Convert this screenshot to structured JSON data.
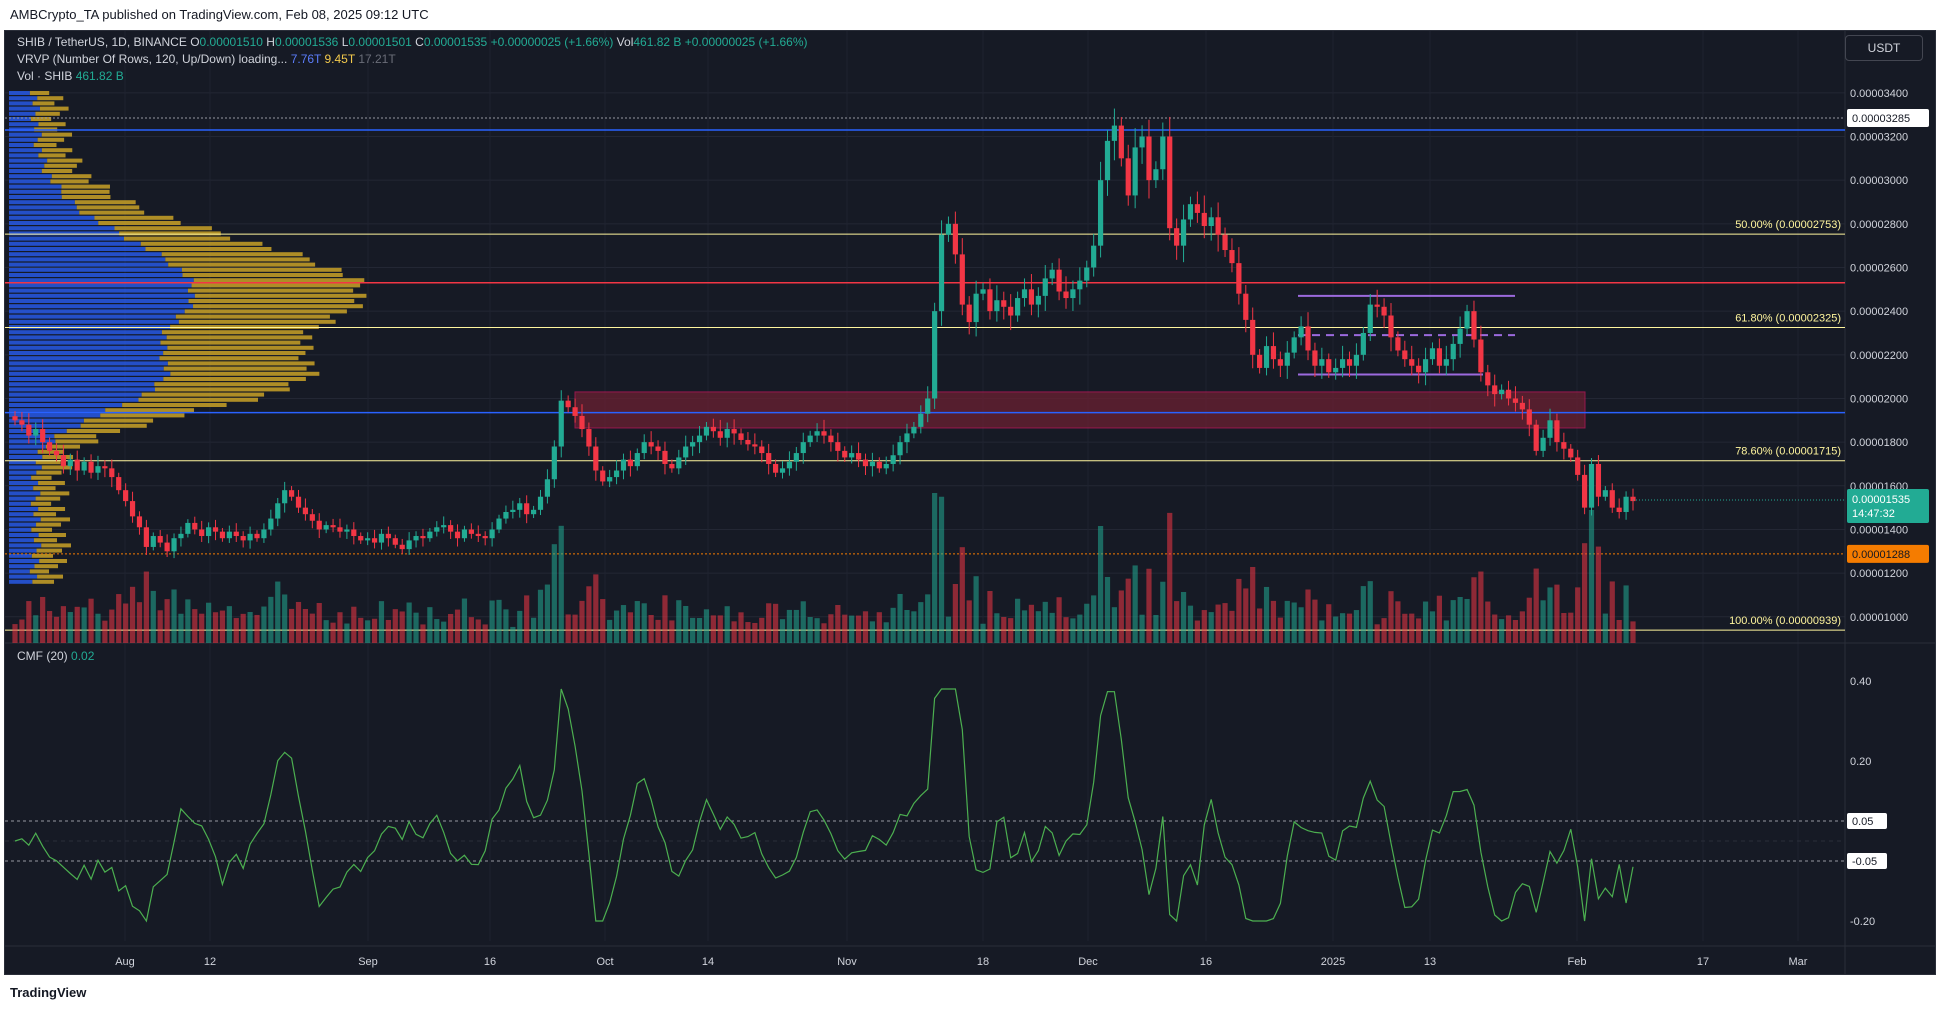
{
  "header": {
    "published": "AMBCrypto_TA published on TradingView.com, Feb 08, 2025 09:12 UTC"
  },
  "legend": {
    "symbol": "SHIB / TetherUS, 1D, BINANCE",
    "o_label": "O",
    "o": "0.00001510",
    "h_label": "H",
    "h": "0.00001536",
    "l_label": "L",
    "l": "0.00001501",
    "c_label": "C",
    "c": "0.00001535",
    "change": "+0.00000025 (+1.66%)",
    "vol_label": "Vol",
    "vol": "461.82 B",
    "vol_change": "+0.00000025 (+1.66%)",
    "vrvp": "VRVP (Number Of Rows, 120, Up/Down) loading...",
    "vrvp_up": "7.76T",
    "vrvp_down": "9.45T",
    "vrvp_total": "17.21T",
    "vol_series": "Vol · SHIB",
    "vol_series_value": "461.82 B",
    "cmf": "CMF (20)",
    "cmf_value": "0.02"
  },
  "currency_button": "USDT",
  "footer": {
    "logo": "TradingView"
  },
  "colors": {
    "up": "#22ab94",
    "down": "#f23645",
    "fib": "#fff59d",
    "blue": "#2962ff",
    "red_line": "#f23645",
    "cmf": "#4caf50",
    "zone": "#6b2032"
  },
  "chart_data": {
    "type": "candlestick",
    "symbol": "SHIB/USDT",
    "timeframe": "1D",
    "ylim": [
      8.8e-06,
      3.5e-05
    ],
    "yticks": [
      "0.00003400",
      "0.00003200",
      "0.00003000",
      "0.00002800",
      "0.00002600",
      "0.00002400",
      "0.00002200",
      "0.00002000",
      "0.00001800",
      "0.00001600",
      "0.00001400",
      "0.00001200",
      "0.00001000"
    ],
    "xticks": [
      "Aug",
      "12",
      "Sep",
      "16",
      "Oct",
      "14",
      "Nov",
      "18",
      "Dec",
      "16",
      "2025",
      "13",
      "Feb",
      "17",
      "Mar"
    ],
    "last_price": "0.00001535",
    "countdown": "14:47:32",
    "price_labels": [
      {
        "value": "0.00003285",
        "price": 3.285e-05,
        "style": "white"
      },
      {
        "value": "0.00001288",
        "price": 1.288e-05,
        "style": "orange"
      }
    ],
    "fib_levels": [
      {
        "label": "50.00% (0.00002753)",
        "price": 2.753e-05
      },
      {
        "label": "61.80% (0.00002325)",
        "price": 2.325e-05
      },
      {
        "label": "78.60% (0.00001715)",
        "price": 1.715e-05
      },
      {
        "label": "100.00% (0.00000939)",
        "price": 9.39e-06
      }
    ],
    "blue_lines": [
      3.23e-05,
      1.935e-05
    ],
    "red_line": 2.53e-05,
    "zone": [
      1.865e-05,
      2.03e-05
    ],
    "range_box": {
      "top": 2.47e-05,
      "mid": 2.29e-05,
      "bottom": 2.11e-05
    },
    "closes": [
      1.9e-05,
      1.88e-05,
      1.83e-05,
      1.86e-05,
      1.8e-05,
      1.76e-05,
      1.74e-05,
      1.69e-05,
      1.72e-05,
      1.67e-05,
      1.71e-05,
      1.66e-05,
      1.69e-05,
      1.68e-05,
      1.64e-05,
      1.58e-05,
      1.53e-05,
      1.46e-05,
      1.41e-05,
      1.32e-05,
      1.37e-05,
      1.34e-05,
      1.3e-05,
      1.36e-05,
      1.38e-05,
      1.43e-05,
      1.4e-05,
      1.37e-05,
      1.41e-05,
      1.39e-05,
      1.36e-05,
      1.39e-05,
      1.37e-05,
      1.35e-05,
      1.38e-05,
      1.36e-05,
      1.4e-05,
      1.45e-05,
      1.52e-05,
      1.58e-05,
      1.55e-05,
      1.5e-05,
      1.47e-05,
      1.44e-05,
      1.4e-05,
      1.42e-05,
      1.41e-05,
      1.39e-05,
      1.4e-05,
      1.37e-05,
      1.35e-05,
      1.36e-05,
      1.34e-05,
      1.38e-05,
      1.36e-05,
      1.33e-05,
      1.31e-05,
      1.35e-05,
      1.37e-05,
      1.36e-05,
      1.39e-05,
      1.41e-05,
      1.42e-05,
      1.39e-05,
      1.36e-05,
      1.4e-05,
      1.38e-05,
      1.37e-05,
      1.36e-05,
      1.4e-05,
      1.45e-05,
      1.48e-05,
      1.49e-05,
      1.52e-05,
      1.47e-05,
      1.49e-05,
      1.55e-05,
      1.63e-05,
      1.78e-05,
      1.99e-05,
      1.96e-05,
      1.92e-05,
      1.86e-05,
      1.78e-05,
      1.67e-05,
      1.62e-05,
      1.64e-05,
      1.67e-05,
      1.72e-05,
      1.69e-05,
      1.75e-05,
      1.8e-05,
      1.78e-05,
      1.76e-05,
      1.7e-05,
      1.68e-05,
      1.73e-05,
      1.78e-05,
      1.8e-05,
      1.83e-05,
      1.87e-05,
      1.85e-05,
      1.82e-05,
      1.86e-05,
      1.84e-05,
      1.81e-05,
      1.79e-05,
      1.78e-05,
      1.75e-05,
      1.7e-05,
      1.66e-05,
      1.68e-05,
      1.71e-05,
      1.75e-05,
      1.8e-05,
      1.83e-05,
      1.85e-05,
      1.83e-05,
      1.8e-05,
      1.76e-05,
      1.73e-05,
      1.75e-05,
      1.72e-05,
      1.69e-05,
      1.71e-05,
      1.68e-05,
      1.7e-05,
      1.74e-05,
      1.8e-05,
      1.84e-05,
      1.87e-05,
      1.93e-05,
      2e-05,
      2.4e-05,
      2.75e-05,
      2.8e-05,
      2.66e-05,
      2.43e-05,
      2.35e-05,
      2.48e-05,
      2.5e-05,
      2.4e-05,
      2.45e-05,
      2.42e-05,
      2.38e-05,
      2.46e-05,
      2.5e-05,
      2.43e-05,
      2.47e-05,
      2.55e-05,
      2.59e-05,
      2.49e-05,
      2.46e-05,
      2.5e-05,
      2.54e-05,
      2.6e-05,
      2.7e-05,
      3e-05,
      3.18e-05,
      3.25e-05,
      3.1e-05,
      2.93e-05,
      3.15e-05,
      3.2e-05,
      3e-05,
      3.05e-05,
      3.2e-05,
      2.78e-05,
      2.7e-05,
      2.82e-05,
      2.89e-05,
      2.85e-05,
      2.79e-05,
      2.83e-05,
      2.75e-05,
      2.68e-05,
      2.62e-05,
      2.48e-05,
      2.36e-05,
      2.2e-05,
      2.14e-05,
      2.24e-05,
      2.18e-05,
      2.15e-05,
      2.21e-05,
      2.28e-05,
      2.33e-05,
      2.22e-05,
      2.15e-05,
      2.18e-05,
      2.12e-05,
      2.14e-05,
      2.18e-05,
      2.15e-05,
      2.2e-05,
      2.3e-05,
      2.43e-05,
      2.42e-05,
      2.38e-05,
      2.28e-05,
      2.22e-05,
      2.18e-05,
      2.15e-05,
      2.12e-05,
      2.18e-05,
      2.23e-05,
      2.15e-05,
      2.18e-05,
      2.25e-05,
      2.32e-05,
      2.4e-05,
      2.27e-05,
      2.12e-05,
      2.06e-05,
      2.02e-05,
      2.04e-05,
      2e-05,
      1.98e-05,
      1.95e-05,
      1.88e-05,
      1.76e-05,
      1.82e-05,
      1.9e-05,
      1.8e-05,
      1.77e-05,
      1.73e-05,
      1.65e-05,
      1.5e-05,
      1.7e-05,
      1.55e-05,
      1.58e-05,
      1.5e-05,
      1.48e-05,
      1.55e-05,
      1.53e-05
    ],
    "volume": [
      9.39e-06,
      1.15e-05
    ],
    "cmf": {
      "ylim": [
        -0.25,
        0.45
      ],
      "yticks": [
        "0.40",
        "0.20",
        "-0.20"
      ],
      "levels": [
        {
          "label": "0.05",
          "value": 0.05
        },
        {
          "label": "-0.05",
          "value": -0.05
        }
      ],
      "last": 0.02
    }
  }
}
